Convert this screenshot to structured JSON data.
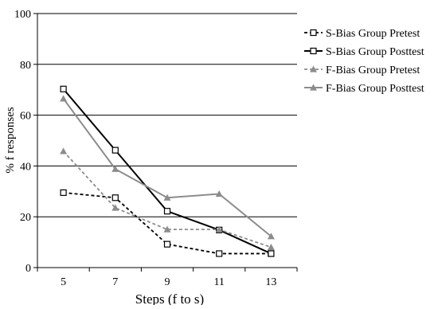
{
  "chart_data": {
    "type": "line",
    "title": "",
    "xlabel": "Steps (f to s)",
    "ylabel": "% f responses",
    "x": [
      5,
      7,
      9,
      11,
      13
    ],
    "x_tick_labels": [
      "5",
      "7",
      "9",
      "11",
      "13"
    ],
    "ylim": [
      0,
      100
    ],
    "y_ticks": [
      0,
      20,
      40,
      60,
      80,
      100
    ],
    "grid": "horizontal",
    "legend_position": "right",
    "series": [
      {
        "name": "S-Bias Group Pretest",
        "values": [
          29.5,
          27.5,
          9.2,
          5.5,
          5.5
        ],
        "color": "#000000",
        "dashed": true,
        "marker": "square"
      },
      {
        "name": "S-Bias Group Posttest",
        "values": [
          70.3,
          46.2,
          22.2,
          14.8,
          5.5
        ],
        "color": "#000000",
        "dashed": false,
        "marker": "square"
      },
      {
        "name": "F-Bias Group Pretest",
        "values": [
          45.8,
          23.5,
          15.0,
          15.0,
          8.0
        ],
        "color": "#8c8c8c",
        "dashed": true,
        "marker": "triangle"
      },
      {
        "name": "F-Bias Group Posttest",
        "values": [
          66.5,
          38.8,
          27.5,
          29.0,
          12.3
        ],
        "color": "#8c8c8c",
        "dashed": false,
        "marker": "triangle"
      }
    ]
  }
}
